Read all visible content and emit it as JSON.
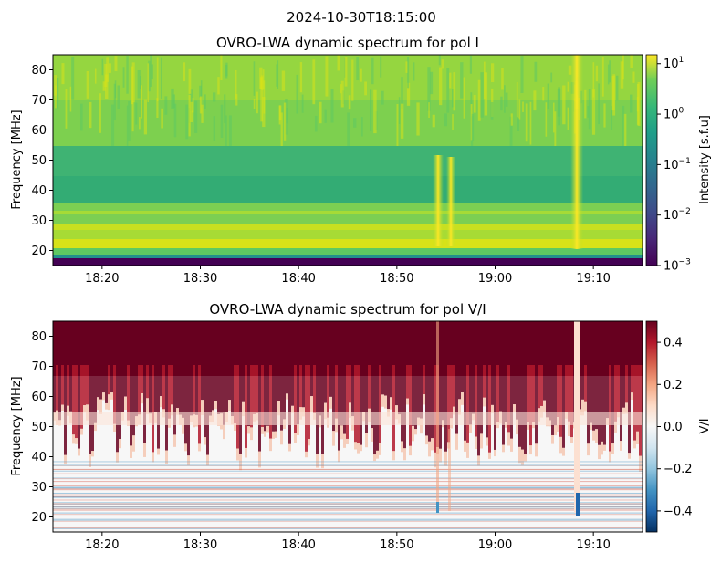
{
  "figure": {
    "suptitle": "2024-10-30T18:15:00"
  },
  "chart_data": [
    {
      "type": "heatmap",
      "title": "OVRO-LWA dynamic spectrum for pol I",
      "xlabel": "",
      "ylabel": "Frequency [MHz]",
      "x_range": [
        "18:15",
        "19:15"
      ],
      "x_ticks": [
        "18:20",
        "18:30",
        "18:40",
        "18:50",
        "19:00",
        "19:10"
      ],
      "ylim": [
        15,
        85
      ],
      "y_ticks": [
        20,
        30,
        40,
        50,
        60,
        70,
        80
      ],
      "colorscale": "viridis",
      "colorbar": {
        "label": "Intensity [s.f.u]",
        "scale": "log",
        "range": [
          0.001,
          15
        ],
        "ticks": [
          "10^-3",
          "10^-2",
          "10^-1",
          "10^0",
          "10^1"
        ]
      },
      "bursts": [
        {
          "time": "18:54",
          "freq_range": [
            20,
            48
          ]
        },
        {
          "time": "18:55.5",
          "freq_range": [
            21,
            48
          ]
        },
        {
          "time": "19:08.5",
          "freq_range": [
            19,
            85
          ]
        }
      ]
    },
    {
      "type": "heatmap",
      "title": "OVRO-LWA dynamic spectrum for pol V/I",
      "xlabel": "",
      "ylabel": "Frequency [MHz]",
      "x_range": [
        "18:15",
        "19:15"
      ],
      "x_ticks": [
        "18:20",
        "18:30",
        "18:40",
        "18:50",
        "19:00",
        "19:10"
      ],
      "ylim": [
        15,
        85
      ],
      "y_ticks": [
        20,
        30,
        40,
        50,
        60,
        70,
        80
      ],
      "colorscale": "RdBu_r",
      "colorbar": {
        "label": "V/I",
        "scale": "linear",
        "range": [
          -0.5,
          0.5
        ],
        "ticks": [
          "−0.4",
          "−0.2",
          "0.0",
          "0.2",
          "0.4"
        ]
      }
    }
  ]
}
